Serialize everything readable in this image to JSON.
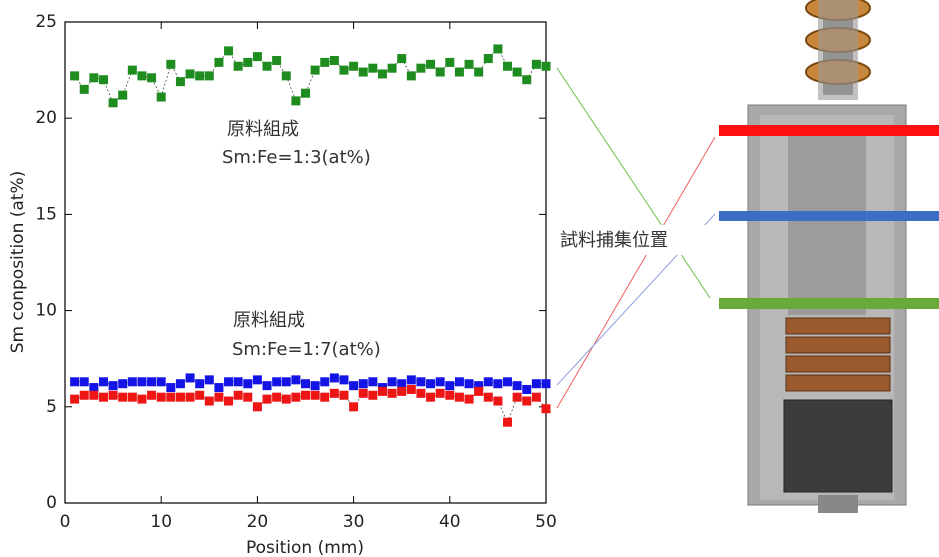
{
  "chart_data": {
    "type": "scatter",
    "x_label": "Position (mm)",
    "y_label": "Sm conposition (at%)",
    "annotations": [
      "原料組成",
      "Sm:Fe=1:3(at%)",
      "原料組成",
      "Sm:Fe=1:7(at%)",
      "試料捕集位置"
    ],
    "x": [
      1,
      2,
      3,
      4,
      5,
      6,
      7,
      8,
      9,
      10,
      11,
      12,
      13,
      14,
      15,
      16,
      17,
      18,
      19,
      20,
      21,
      22,
      23,
      24,
      25,
      26,
      27,
      28,
      29,
      30,
      31,
      32,
      33,
      34,
      35,
      36,
      37,
      38,
      39,
      40,
      41,
      42,
      43,
      44,
      45,
      46,
      47,
      48,
      49,
      50
    ],
    "series": [
      {
        "color": "#1f8c1f",
        "values": [
          22.2,
          21.5,
          22.1,
          22.0,
          20.8,
          21.2,
          22.5,
          22.2,
          22.1,
          21.1,
          22.8,
          21.9,
          22.3,
          22.2,
          22.2,
          22.9,
          23.5,
          22.7,
          22.9,
          23.2,
          22.7,
          23.0,
          22.2,
          20.9,
          21.3,
          22.5,
          22.9,
          23.0,
          22.5,
          22.7,
          22.4,
          22.6,
          22.3,
          22.6,
          23.1,
          22.2,
          22.6,
          22.8,
          22.4,
          22.9,
          22.4,
          22.8,
          22.4,
          23.1,
          23.6,
          22.7,
          22.4,
          22.0,
          22.8,
          22.7
        ]
      },
      {
        "color": "#1414e6",
        "values": [
          6.3,
          6.3,
          6.0,
          6.3,
          6.1,
          6.2,
          6.3,
          6.3,
          6.3,
          6.3,
          6.0,
          6.2,
          6.5,
          6.2,
          6.4,
          6.0,
          6.3,
          6.3,
          6.2,
          6.4,
          6.1,
          6.3,
          6.3,
          6.4,
          6.2,
          6.1,
          6.3,
          6.5,
          6.4,
          6.1,
          6.2,
          6.3,
          6.0,
          6.3,
          6.2,
          6.4,
          6.3,
          6.2,
          6.3,
          6.1,
          6.3,
          6.2,
          6.1,
          6.3,
          6.2,
          6.3,
          6.1,
          5.9,
          6.2,
          6.2
        ]
      },
      {
        "color": "#ee1515",
        "values": [
          5.4,
          5.6,
          5.6,
          5.5,
          5.6,
          5.5,
          5.5,
          5.4,
          5.6,
          5.5,
          5.5,
          5.5,
          5.5,
          5.6,
          5.3,
          5.5,
          5.3,
          5.6,
          5.5,
          5.0,
          5.4,
          5.5,
          5.4,
          5.5,
          5.6,
          5.6,
          5.5,
          5.7,
          5.6,
          5.0,
          5.7,
          5.6,
          5.8,
          5.7,
          5.8,
          5.9,
          5.7,
          5.5,
          5.7,
          5.6,
          5.5,
          5.4,
          5.8,
          5.5,
          5.3,
          4.2,
          5.5,
          5.3,
          5.5,
          4.9
        ]
      }
    ],
    "xlim": [
      0,
      50
    ],
    "xticks": [
      0,
      10,
      20,
      30,
      40,
      50
    ],
    "ylim": [
      0,
      25
    ],
    "yticks": [
      0,
      5,
      10,
      15,
      20,
      25
    ]
  }
}
